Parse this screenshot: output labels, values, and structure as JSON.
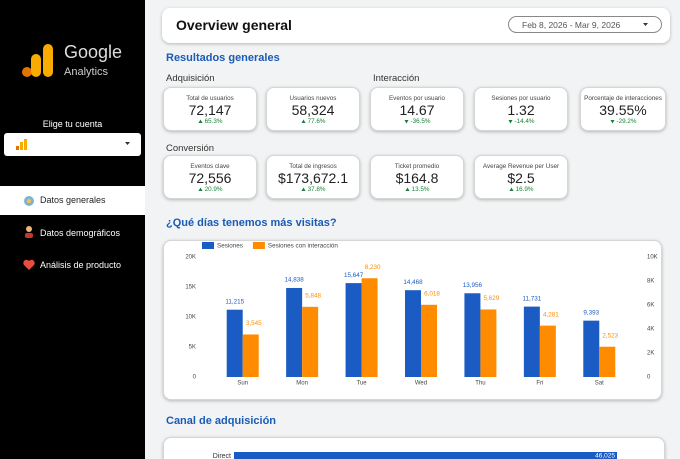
{
  "sidebar": {
    "logo_title": "Google",
    "logo_subtitle": "Analytics",
    "account_label": "Elige tu cuenta",
    "nav": [
      "Datos generales",
      "Datos demográficos",
      "Análisis de producto"
    ]
  },
  "header": {
    "title": "Overview general",
    "date_range": "Feb 8, 2026 - Mar 9, 2026"
  },
  "section_title": "Resultados generales",
  "groups": [
    {
      "title": "Adquisición",
      "cards": [
        {
          "label": "Total de usuarios",
          "value": "72,147",
          "delta": "65.3%"
        },
        {
          "label": "Usuarios nuevos",
          "value": "58,324",
          "delta": "77.6%"
        }
      ]
    },
    {
      "title": "Interacción",
      "cards": [
        {
          "label": "Eventos por usuario",
          "value": "14.67",
          "delta": "-36.5%"
        },
        {
          "label": "Sesiones por usuario",
          "value": "1.32",
          "delta": "-14.4%"
        },
        {
          "label": "Porcentaje de interacciones",
          "value": "39.55%",
          "delta": "-29.2%"
        }
      ]
    },
    {
      "title": "Conversión",
      "cards": [
        {
          "label": "Eventos clave",
          "value": "72,556",
          "delta": "20.9%"
        },
        {
          "label": "Total de ingresos",
          "value": "$173,672.1",
          "delta": "37.8%"
        },
        {
          "label": "Ticket promedio",
          "value": "$164.8",
          "delta": "13.5%"
        },
        {
          "label": "Average Revenue per User",
          "value": "$2.5",
          "delta": "16.9%"
        }
      ]
    }
  ],
  "chart_data": [
    {
      "type": "bar",
      "title": "¿Qué días tenemos más visitas?",
      "categories": [
        "Sun",
        "Mon",
        "Tue",
        "Wed",
        "Thu",
        "Fri",
        "Sat"
      ],
      "series": [
        {
          "name": "Sesiones",
          "color": "#1a5bc4",
          "values": [
            11215,
            14838,
            15647,
            14468,
            13956,
            11731,
            9393
          ],
          "value_labels": [
            "11,215",
            "14,838",
            "15,647",
            "14,468",
            "13,956",
            "11,731",
            "9,393"
          ]
        },
        {
          "name": "Sesiones con interacción",
          "color": "#ff8c00",
          "axis": "y2",
          "values": [
            3545,
            5848,
            8230,
            6018,
            5629,
            4281,
            2523
          ],
          "value_labels": [
            "3,545",
            "5,848",
            "8,230",
            "6,018",
            "5,629",
            "4,281",
            "2,523"
          ]
        }
      ],
      "ylim": [
        0,
        20000
      ],
      "yticks": [
        0,
        {
          "value": 5000,
          "label": "5K"
        },
        {
          "value": 10000,
          "label": "10K"
        },
        {
          "value": 15000,
          "label": "15K"
        },
        {
          "value": 20000,
          "label": "20K"
        }
      ],
      "y2lim": [
        0,
        10000
      ],
      "y2ticks": [
        0,
        {
          "value": 2000,
          "label": "2K"
        },
        {
          "value": 4000,
          "label": "4K"
        },
        {
          "value": 6000,
          "label": "6K"
        },
        {
          "value": 8000,
          "label": "8K"
        },
        {
          "value": 10000,
          "label": "10K"
        }
      ],
      "legend": "top-left"
    },
    {
      "type": "hbar",
      "title": "Canal de adquisición",
      "categories": [
        "Direct"
      ],
      "values": [
        46025
      ],
      "value_labels": [
        "46,025"
      ],
      "color": "#1a5bc4"
    }
  ]
}
